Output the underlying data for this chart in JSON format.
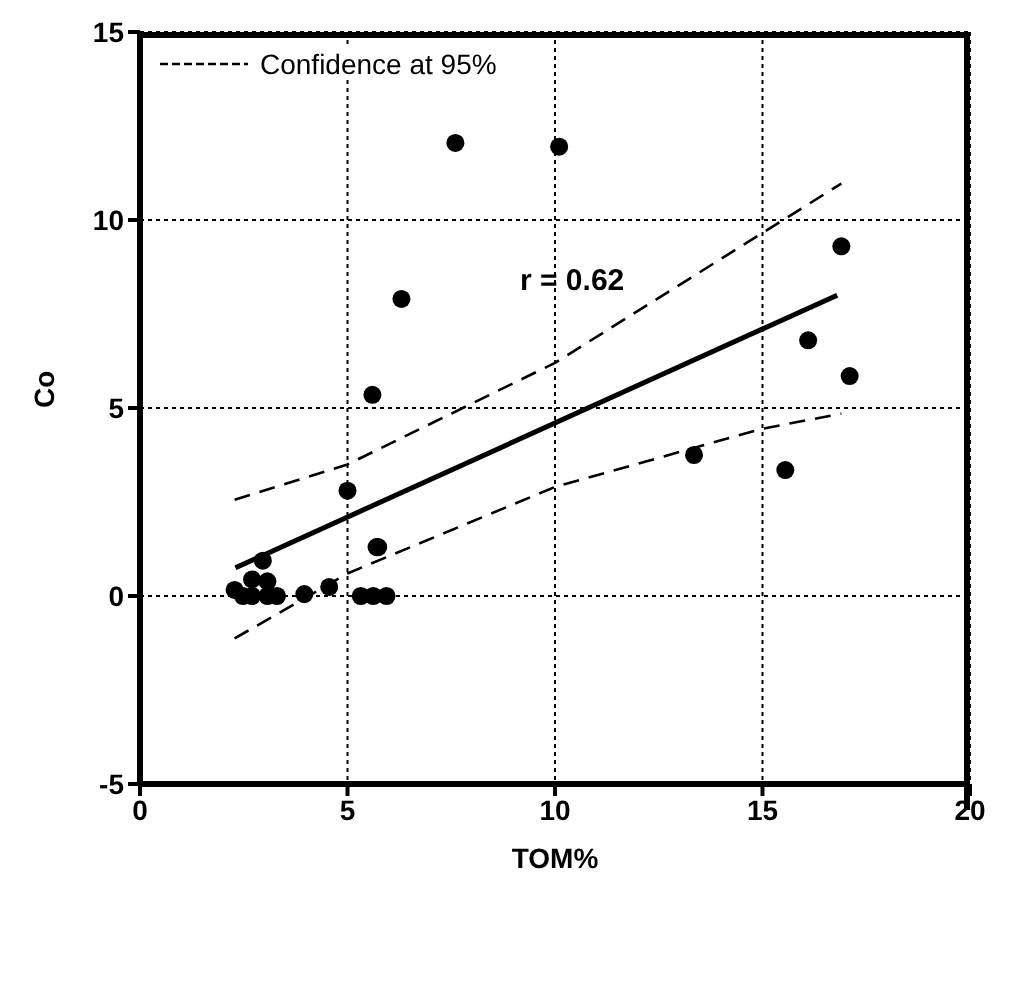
{
  "chart_data": {
    "type": "scatter",
    "xlabel": "TOM%",
    "ylabel": "Co",
    "xlim": [
      0,
      20
    ],
    "xticks": [
      0,
      5,
      10,
      15,
      20
    ],
    "ylim": [
      -5,
      15
    ],
    "yticks": [
      -5,
      0,
      5,
      10,
      15
    ],
    "grid": true,
    "legend": "top left",
    "annotations": [
      "r = 0.62"
    ],
    "series": [
      {
        "color": "#000000",
        "marker": "circle",
        "x": [
          7.6,
          10.1,
          6.3,
          5.6,
          5.0,
          5.7,
          13.35,
          15.55,
          16.1,
          16.9,
          17.1,
          2.28,
          2.48,
          2.7,
          2.7,
          2.96,
          3.07,
          3.07,
          3.3,
          3.96,
          4.56,
          5.32,
          5.62,
          5.94,
          5.74
        ],
        "values": [
          12.05,
          11.95,
          7.9,
          5.35,
          2.8,
          1.3,
          3.75,
          3.35,
          6.8,
          9.3,
          5.85,
          0.16,
          0,
          0,
          0.44,
          0.94,
          0.39,
          0,
          0,
          0.05,
          0.24,
          0,
          0,
          0,
          1.3
        ]
      },
      {
        "type": "line",
        "color": "#000000",
        "marker": "none",
        "line_style": "solid",
        "x": [
          2.3,
          16.8
        ],
        "values": [
          0.75,
          8.0
        ]
      },
      {
        "type": "line",
        "name": "Confidence at 95%",
        "color": "#000000",
        "marker": "none",
        "line_style": "dashed",
        "x": [
          2.28,
          5,
          10,
          16.9
        ],
        "values": [
          2.56,
          3.5,
          6.2,
          10.97
        ]
      },
      {
        "type": "line",
        "color": "#000000",
        "marker": "none",
        "line_style": "dashed",
        "x": [
          2.28,
          5,
          10,
          15,
          16.9
        ],
        "values": [
          -1.13,
          0.6,
          2.9,
          4.45,
          4.85
        ]
      }
    ]
  }
}
